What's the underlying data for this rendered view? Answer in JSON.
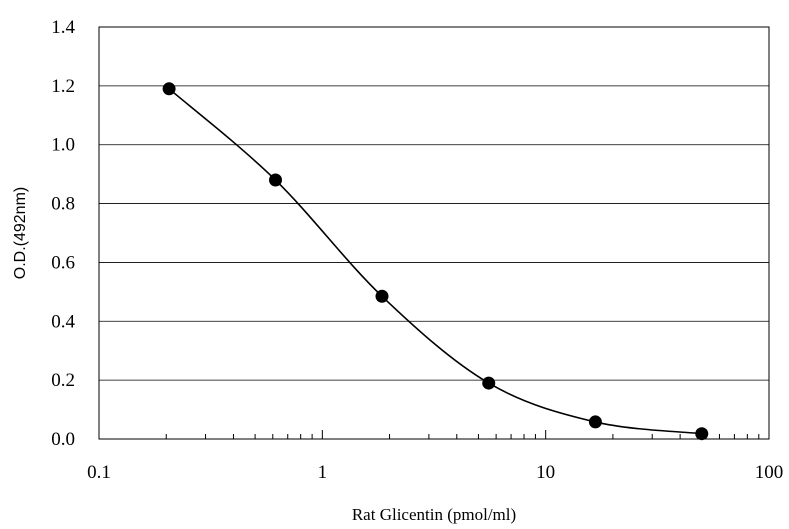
{
  "chart_data": {
    "type": "scatter",
    "title": "",
    "xlabel": "Rat Glicentin (pmol/ml)",
    "ylabel": "O.D.(492nm)",
    "xscale": "log",
    "xlim": [
      0.1,
      100
    ],
    "ylim": [
      0,
      1.4
    ],
    "x_ticks": [
      "0.1",
      "1",
      "10",
      "100"
    ],
    "y_ticks": [
      "0.0",
      "0.2",
      "0.4",
      "0.6",
      "0.8",
      "1.0",
      "1.2",
      "1.4"
    ],
    "grid": "horizontal",
    "legend": "none",
    "series": [
      {
        "x": [
          0.206,
          0.617,
          1.85,
          5.56,
          16.7,
          50
        ],
        "y": [
          1.19,
          0.88,
          0.485,
          0.19,
          0.058,
          0.018
        ],
        "marker": "filled-circle",
        "line": "smooth",
        "color": "#000000"
      }
    ]
  }
}
